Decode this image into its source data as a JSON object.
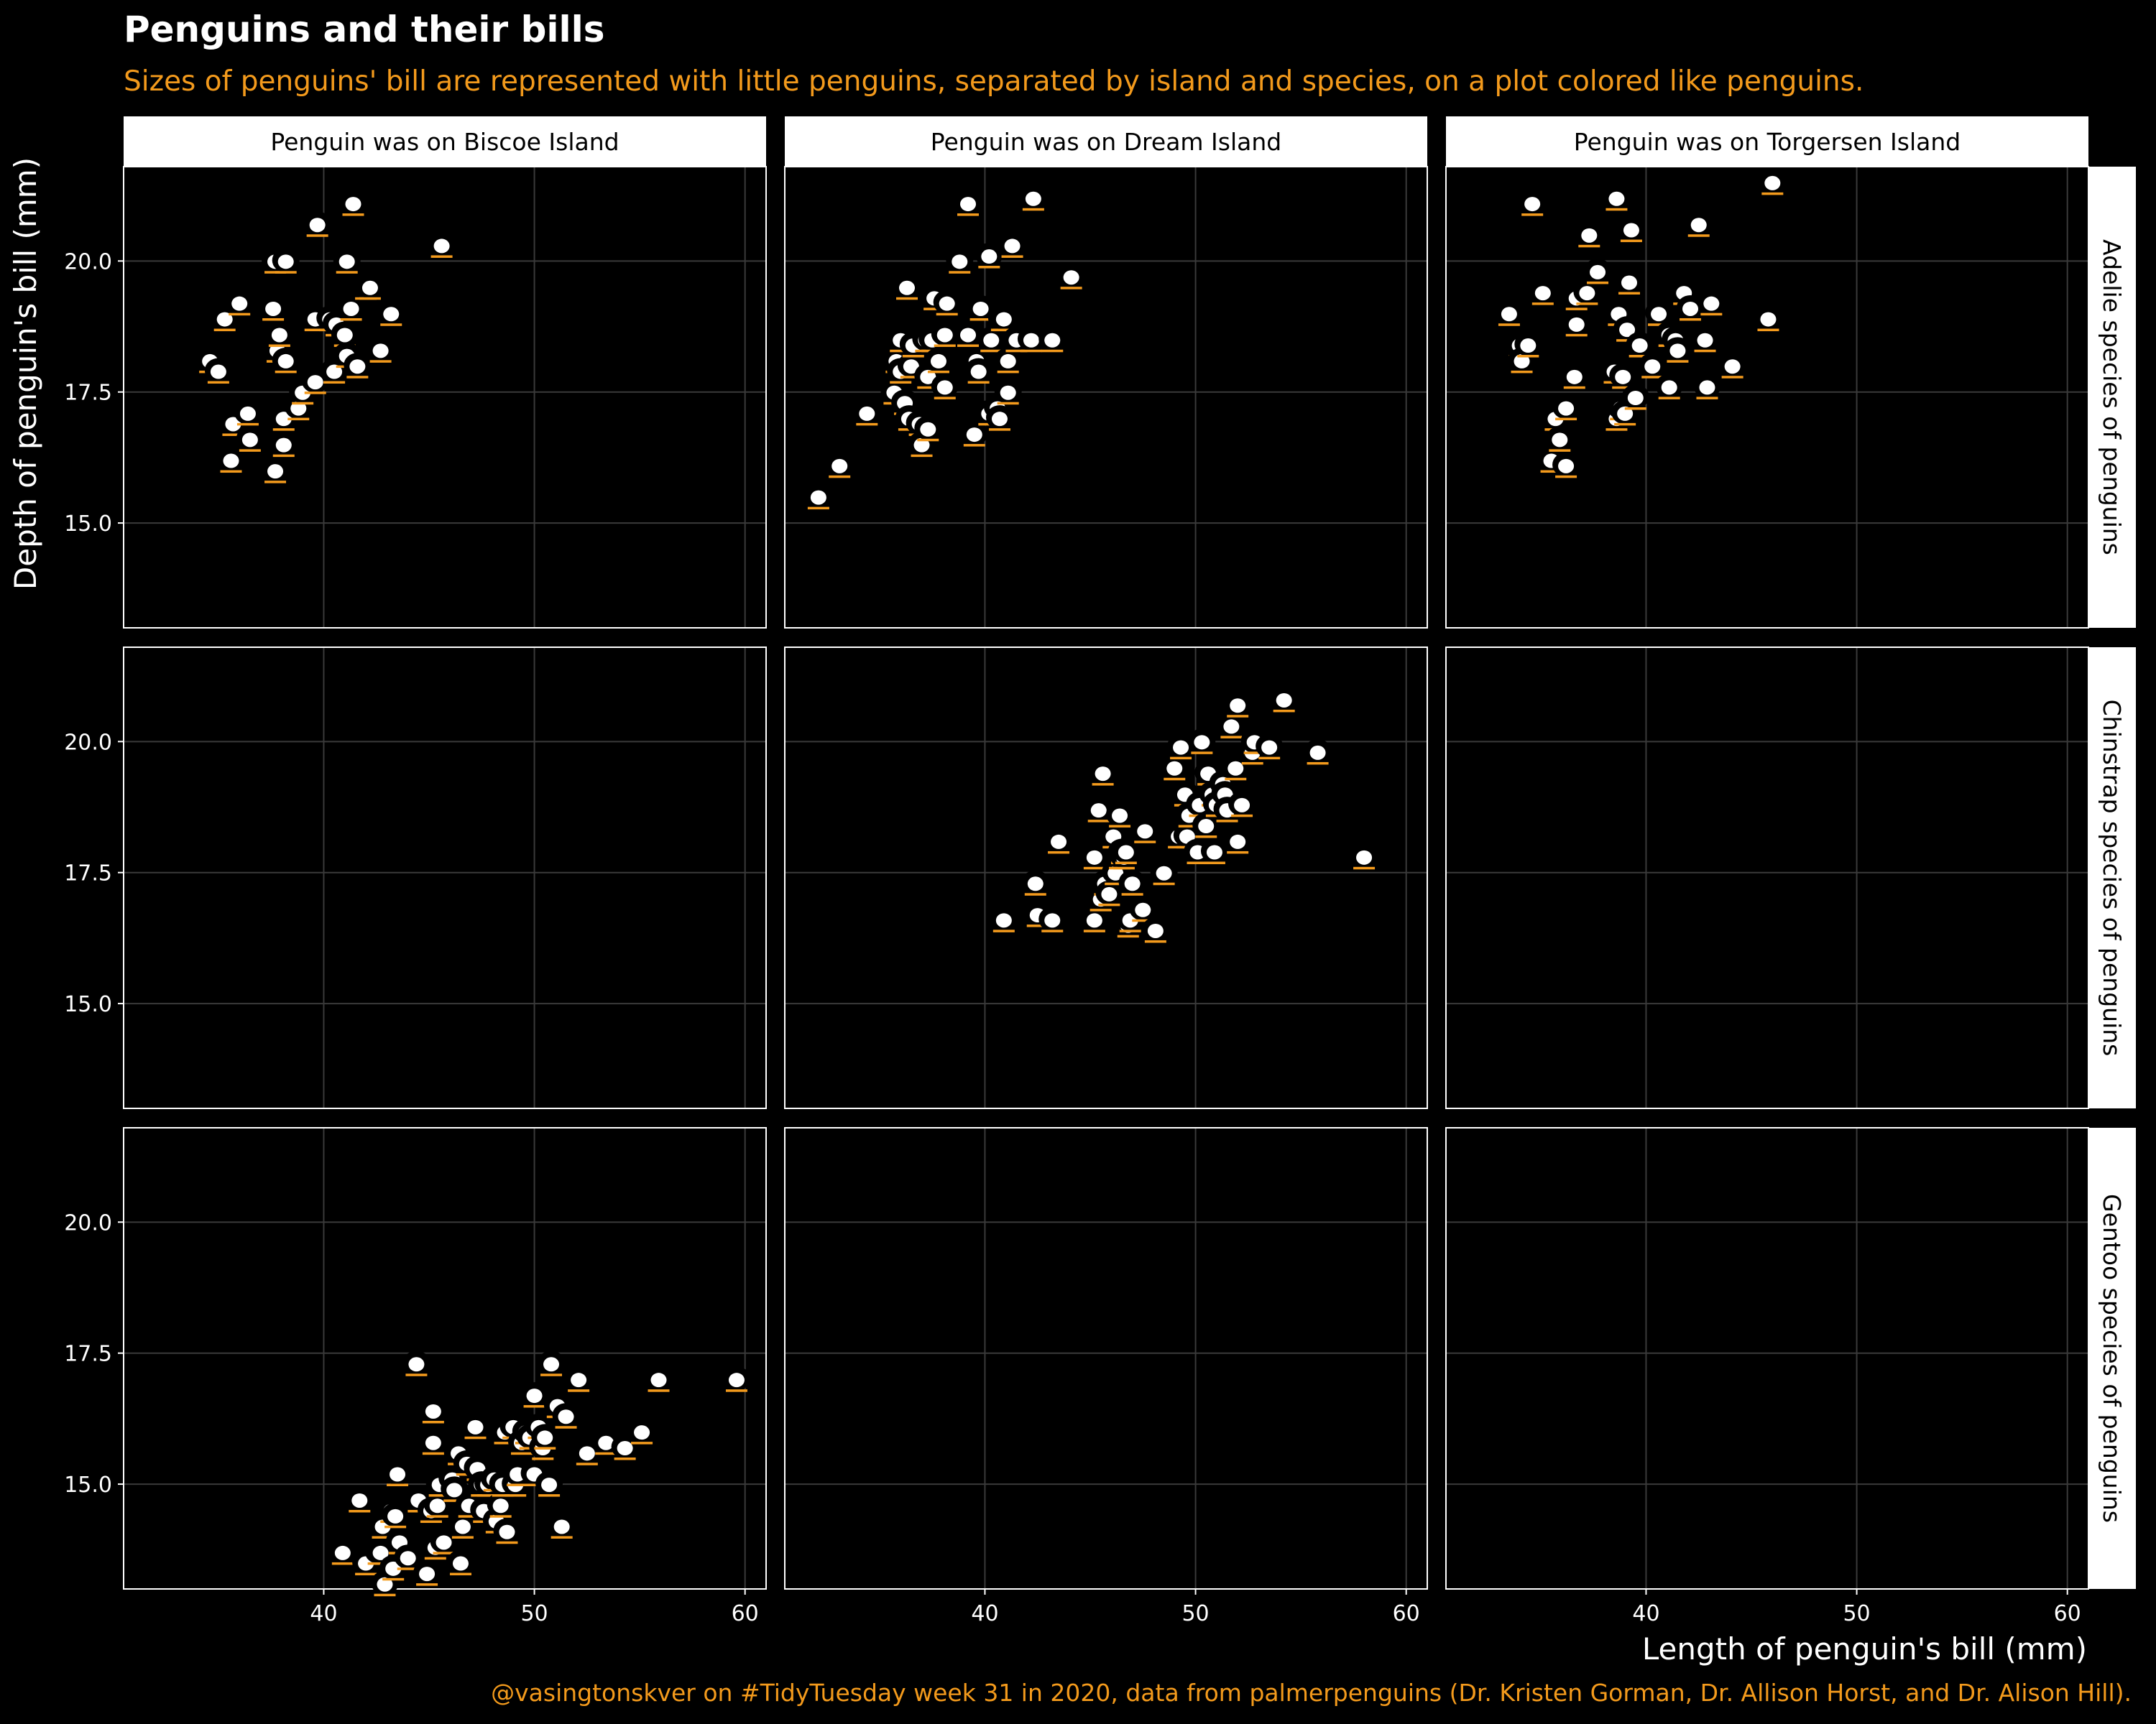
{
  "title": "Penguins and their bills",
  "subtitle": "Sizes of penguins' bill are represented with little penguins, separated by island and species, on a plot colored like penguins.",
  "caption": "@vasingtonskver on #TidyTuesday week 31 in 2020, data from palmerpenguins (Dr. Kristen Gorman, Dr. Allison Horst, and Dr. Alison Hill).",
  "colors": {
    "background": "#000000",
    "accent": "#f39a1c",
    "text": "#ffffff",
    "panel_border": "#ffffff",
    "grid": "#3a3a3a",
    "strip_fill": "#ffffff",
    "strip_text": "#000000",
    "penguin_body": "#ffffff",
    "penguin_outline": "#000000"
  },
  "chart_data": {
    "type": "scatter",
    "facet_columns": [
      "Penguin was on Biscoe Island",
      "Penguin was on Dream Island",
      "Penguin was on Torgersen Island"
    ],
    "facet_rows": [
      "Adelie species of penguins",
      "Chinstrap species of penguins",
      "Gentoo species of penguins"
    ],
    "xlabel": "Length of penguin's bill (mm)",
    "ylabel": "Depth of penguin's bill (mm)",
    "xlim": [
      30.5,
      61
    ],
    "ylim": [
      13.0,
      21.8
    ],
    "x_ticks": [
      40,
      50,
      60
    ],
    "x_tick_labels": [
      "40",
      "50",
      "60"
    ],
    "y_ticks": [
      15.0,
      17.5,
      20.0
    ],
    "y_tick_labels": [
      "15.0",
      "17.5",
      "20.0"
    ],
    "grid": true,
    "panels": [
      {
        "row": 0,
        "col": 0,
        "points": [
          [
            34.6,
            18.1
          ],
          [
            35.0,
            17.9
          ],
          [
            35.3,
            18.9
          ],
          [
            35.6,
            16.2
          ],
          [
            35.7,
            16.9
          ],
          [
            36.0,
            19.2
          ],
          [
            36.4,
            17.1
          ],
          [
            36.5,
            16.6
          ],
          [
            37.6,
            19.1
          ],
          [
            37.7,
            16.0
          ],
          [
            37.8,
            18.3
          ],
          [
            37.7,
            20.0
          ],
          [
            37.9,
            18.6
          ],
          [
            38.1,
            17.0
          ],
          [
            38.2,
            20.0
          ],
          [
            38.1,
            16.5
          ],
          [
            38.2,
            18.1
          ],
          [
            38.8,
            17.2
          ],
          [
            39.0,
            17.5
          ],
          [
            39.6,
            18.9
          ],
          [
            39.6,
            17.7
          ],
          [
            39.7,
            20.7
          ],
          [
            40.3,
            18.9
          ],
          [
            40.5,
            17.9
          ],
          [
            40.6,
            18.8
          ],
          [
            41.0,
            18.6
          ],
          [
            41.1,
            20.0
          ],
          [
            41.1,
            18.2
          ],
          [
            41.3,
            19.1
          ],
          [
            41.4,
            21.1
          ],
          [
            41.6,
            18.0
          ],
          [
            42.0,
            19.5
          ],
          [
            42.2,
            19.5
          ],
          [
            42.7,
            18.3
          ],
          [
            43.2,
            19.0
          ],
          [
            45.6,
            20.3
          ]
        ]
      },
      {
        "row": 0,
        "col": 1,
        "points": [
          [
            32.1,
            15.5
          ],
          [
            33.1,
            16.1
          ],
          [
            34.4,
            17.1
          ],
          [
            35.7,
            17.5
          ],
          [
            35.8,
            18.1
          ],
          [
            36.0,
            18.5
          ],
          [
            36.0,
            17.9
          ],
          [
            36.2,
            17.3
          ],
          [
            36.3,
            19.5
          ],
          [
            36.4,
            17.0
          ],
          [
            36.5,
            18.0
          ],
          [
            36.6,
            18.4
          ],
          [
            36.9,
            16.9
          ],
          [
            37.0,
            16.5
          ],
          [
            37.2,
            18.5
          ],
          [
            37.3,
            16.8
          ],
          [
            37.3,
            17.8
          ],
          [
            37.5,
            18.5
          ],
          [
            37.6,
            19.3
          ],
          [
            37.8,
            18.1
          ],
          [
            38.1,
            18.6
          ],
          [
            38.1,
            17.6
          ],
          [
            38.2,
            19.2
          ],
          [
            38.8,
            20.0
          ],
          [
            39.2,
            21.1
          ],
          [
            39.2,
            18.6
          ],
          [
            39.5,
            16.7
          ],
          [
            39.6,
            18.1
          ],
          [
            39.7,
            17.9
          ],
          [
            39.8,
            19.1
          ],
          [
            40.2,
            17.1
          ],
          [
            40.2,
            20.1
          ],
          [
            40.3,
            18.5
          ],
          [
            40.6,
            17.2
          ],
          [
            40.7,
            17.0
          ],
          [
            40.8,
            18.9
          ],
          [
            40.9,
            18.9
          ],
          [
            41.1,
            17.5
          ],
          [
            41.1,
            18.1
          ],
          [
            41.3,
            20.3
          ],
          [
            41.5,
            18.5
          ],
          [
            42.2,
            18.5
          ],
          [
            42.3,
            21.2
          ],
          [
            43.2,
            18.5
          ],
          [
            44.1,
            19.7
          ]
        ]
      },
      {
        "row": 0,
        "col": 2,
        "points": [
          [
            33.5,
            19.0
          ],
          [
            34.0,
            18.4
          ],
          [
            34.1,
            18.1
          ],
          [
            34.4,
            18.4
          ],
          [
            34.6,
            21.1
          ],
          [
            35.1,
            19.4
          ],
          [
            35.5,
            16.2
          ],
          [
            35.7,
            17.0
          ],
          [
            35.9,
            16.6
          ],
          [
            36.2,
            16.1
          ],
          [
            36.2,
            17.2
          ],
          [
            36.6,
            17.8
          ],
          [
            36.7,
            19.3
          ],
          [
            36.7,
            18.8
          ],
          [
            37.2,
            19.4
          ],
          [
            37.3,
            20.5
          ],
          [
            37.7,
            19.8
          ],
          [
            38.5,
            17.9
          ],
          [
            38.6,
            21.2
          ],
          [
            38.6,
            17.0
          ],
          [
            38.7,
            19.0
          ],
          [
            38.8,
            17.2
          ],
          [
            38.9,
            17.8
          ],
          [
            39.0,
            17.1
          ],
          [
            39.1,
            18.7
          ],
          [
            39.2,
            19.6
          ],
          [
            39.3,
            20.6
          ],
          [
            39.5,
            17.4
          ],
          [
            39.7,
            18.4
          ],
          [
            40.3,
            18.0
          ],
          [
            40.6,
            19.0
          ],
          [
            41.1,
            17.6
          ],
          [
            41.1,
            18.6
          ],
          [
            41.4,
            18.5
          ],
          [
            41.5,
            18.3
          ],
          [
            41.8,
            19.4
          ],
          [
            42.1,
            19.1
          ],
          [
            42.5,
            20.7
          ],
          [
            42.8,
            18.5
          ],
          [
            42.9,
            17.6
          ],
          [
            43.1,
            19.2
          ],
          [
            44.1,
            18.0
          ],
          [
            45.8,
            18.9
          ],
          [
            46.0,
            21.5
          ]
        ]
      },
      {
        "row": 1,
        "col": 1,
        "points": [
          [
            40.9,
            16.6
          ],
          [
            42.4,
            17.3
          ],
          [
            42.5,
            16.7
          ],
          [
            43.2,
            16.6
          ],
          [
            43.5,
            18.1
          ],
          [
            45.2,
            17.8
          ],
          [
            45.2,
            16.6
          ],
          [
            45.4,
            18.7
          ],
          [
            45.5,
            17.0
          ],
          [
            45.6,
            19.4
          ],
          [
            45.7,
            17.3
          ],
          [
            45.9,
            17.1
          ],
          [
            46.1,
            18.2
          ],
          [
            46.2,
            17.5
          ],
          [
            46.4,
            18.6
          ],
          [
            46.4,
            17.8
          ],
          [
            46.5,
            17.9
          ],
          [
            46.6,
            17.8
          ],
          [
            46.7,
            17.9
          ],
          [
            46.8,
            16.5
          ],
          [
            46.9,
            16.6
          ],
          [
            47.0,
            17.3
          ],
          [
            47.5,
            16.8
          ],
          [
            47.6,
            18.3
          ],
          [
            48.1,
            16.4
          ],
          [
            48.5,
            17.5
          ],
          [
            49.0,
            19.5
          ],
          [
            49.2,
            18.2
          ],
          [
            49.3,
            19.9
          ],
          [
            49.5,
            19.0
          ],
          [
            49.6,
            18.2
          ],
          [
            49.7,
            18.6
          ],
          [
            50.1,
            17.9
          ],
          [
            50.2,
            18.8
          ],
          [
            50.3,
            20.0
          ],
          [
            50.5,
            18.4
          ],
          [
            50.6,
            19.4
          ],
          [
            50.8,
            19.0
          ],
          [
            50.9,
            17.9
          ],
          [
            51.0,
            18.8
          ],
          [
            51.3,
            19.2
          ],
          [
            51.4,
            19.0
          ],
          [
            51.5,
            18.7
          ],
          [
            51.7,
            20.3
          ],
          [
            51.9,
            19.5
          ],
          [
            52.0,
            18.1
          ],
          [
            52.0,
            20.7
          ],
          [
            52.2,
            18.8
          ],
          [
            52.7,
            19.8
          ],
          [
            52.8,
            20.0
          ],
          [
            53.5,
            19.9
          ],
          [
            54.2,
            20.8
          ],
          [
            55.8,
            19.8
          ],
          [
            58.0,
            17.8
          ]
        ]
      },
      {
        "row": 2,
        "col": 0,
        "points": [
          [
            40.9,
            13.7
          ],
          [
            41.7,
            14.7
          ],
          [
            42.0,
            13.5
          ],
          [
            42.6,
            13.7
          ],
          [
            42.7,
            13.7
          ],
          [
            42.8,
            14.2
          ],
          [
            42.9,
            13.1
          ],
          [
            43.2,
            14.5
          ],
          [
            43.3,
            13.4
          ],
          [
            43.4,
            14.4
          ],
          [
            43.5,
            15.2
          ],
          [
            43.6,
            13.9
          ],
          [
            44.0,
            13.6
          ],
          [
            44.4,
            17.3
          ],
          [
            44.5,
            14.7
          ],
          [
            44.9,
            13.3
          ],
          [
            45.1,
            14.5
          ],
          [
            45.2,
            15.8
          ],
          [
            45.2,
            16.4
          ],
          [
            45.3,
            13.8
          ],
          [
            45.4,
            14.6
          ],
          [
            45.5,
            15.0
          ],
          [
            45.7,
            13.9
          ],
          [
            46.1,
            15.1
          ],
          [
            46.2,
            14.9
          ],
          [
            46.4,
            15.6
          ],
          [
            46.5,
            13.5
          ],
          [
            46.6,
            14.2
          ],
          [
            46.8,
            15.4
          ],
          [
            46.9,
            14.6
          ],
          [
            47.2,
            16.1
          ],
          [
            47.3,
            15.3
          ],
          [
            47.5,
            15.0
          ],
          [
            47.6,
            14.5
          ],
          [
            47.8,
            15.0
          ],
          [
            48.1,
            15.1
          ],
          [
            48.2,
            14.3
          ],
          [
            48.4,
            14.6
          ],
          [
            48.5,
            15.0
          ],
          [
            48.6,
            16.0
          ],
          [
            48.7,
            14.1
          ],
          [
            49.0,
            16.1
          ],
          [
            49.1,
            15.0
          ],
          [
            49.2,
            15.2
          ],
          [
            49.4,
            15.8
          ],
          [
            49.6,
            16.0
          ],
          [
            49.8,
            15.9
          ],
          [
            50.0,
            15.2
          ],
          [
            50.2,
            16.1
          ],
          [
            50.4,
            15.7
          ],
          [
            50.5,
            15.9
          ],
          [
            50.7,
            15.0
          ],
          [
            50.8,
            17.3
          ],
          [
            50.0,
            16.7
          ],
          [
            51.1,
            16.5
          ],
          [
            51.3,
            14.2
          ],
          [
            51.5,
            16.3
          ],
          [
            52.1,
            17.0
          ],
          [
            52.5,
            15.6
          ],
          [
            53.4,
            15.8
          ],
          [
            54.3,
            15.7
          ],
          [
            55.1,
            16.0
          ],
          [
            55.9,
            17.0
          ],
          [
            59.6,
            17.0
          ]
        ]
      }
    ]
  }
}
